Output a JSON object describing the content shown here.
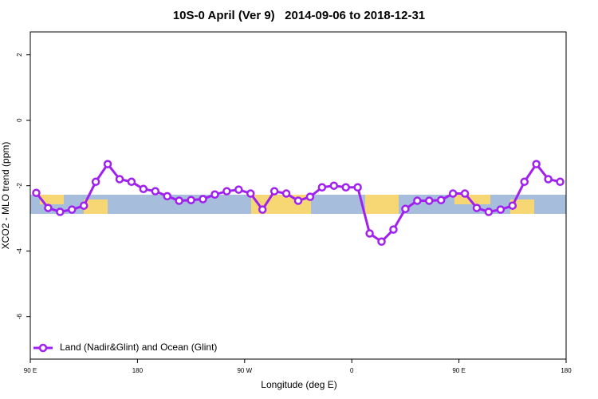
{
  "chart_data": {
    "type": "line",
    "title": "10S-0 April (Ver 9)   2014-09-06 to 2018-12-31",
    "x_label": "Longitude (deg E)",
    "y_label": "XCO2 - MLO trend (ppm)",
    "x": [
      95,
      105,
      115,
      125,
      135,
      145,
      155,
      165,
      175,
      185,
      195,
      205,
      215,
      225,
      235,
      245,
      255,
      265,
      275,
      285,
      295,
      305,
      315,
      325,
      335,
      345,
      355,
      365,
      375,
      385,
      395,
      405,
      415,
      425,
      435,
      445,
      455,
      465,
      475,
      485,
      495,
      505,
      515,
      525,
      535
    ],
    "series": [
      {
        "name": "Land (Nadir&Glint) and Ocean (Glint)",
        "color": "#a020f0",
        "values": [
          -2.22,
          -2.68,
          -2.8,
          -2.73,
          -2.61,
          -1.88,
          -1.34,
          -1.8,
          -1.88,
          -2.1,
          -2.17,
          -2.32,
          -2.46,
          -2.44,
          -2.41,
          -2.27,
          -2.17,
          -2.12,
          -2.24,
          -2.73,
          -2.17,
          -2.24,
          -2.46,
          -2.34,
          -2.05,
          -2.0,
          -2.05,
          -2.05,
          -3.46,
          -3.71,
          -3.34,
          -2.71,
          -2.46,
          -2.46,
          -2.44,
          -2.24,
          -2.24,
          -2.68,
          -2.8,
          -2.73,
          -2.61,
          -1.88,
          -1.34,
          -1.8,
          -1.88
        ]
      }
    ],
    "xlim": [
      90,
      540
    ],
    "xticks": [
      {
        "value": 90,
        "label": "90 E"
      },
      {
        "value": 180,
        "label": "180"
      },
      {
        "value": 270,
        "label": "90 W"
      },
      {
        "value": 360,
        "label": "0"
      },
      {
        "value": 450,
        "label": "90 E"
      },
      {
        "value": 540,
        "label": "180"
      }
    ],
    "ylim": [
      -7.3,
      2.7
    ],
    "yticks": [
      2,
      0,
      -2,
      -4,
      -6
    ],
    "legend": "bottom-left"
  }
}
